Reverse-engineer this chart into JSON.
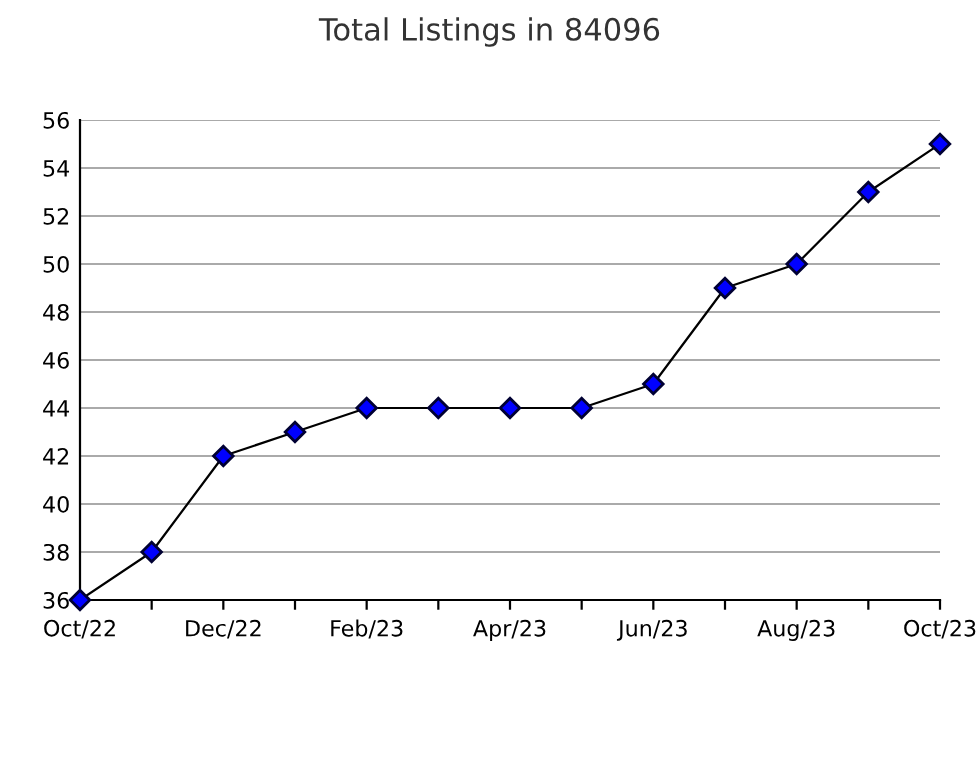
{
  "chart_data": {
    "type": "line",
    "title": "Total Listings in 84096",
    "categories": [
      "Oct/22",
      null,
      "Dec/22",
      null,
      "Feb/23",
      null,
      "Apr/23",
      null,
      "Jun/23",
      null,
      "Aug/23",
      null,
      "Oct/23"
    ],
    "series": [
      {
        "color": "#0000ff",
        "values": [
          36,
          38,
          42,
          43,
          44,
          44,
          44,
          44,
          45,
          49,
          50,
          53,
          55
        ]
      }
    ],
    "ylim": [
      36,
      56
    ],
    "yticks": [
      36,
      38,
      40,
      42,
      44,
      46,
      48,
      50,
      52,
      54,
      56
    ],
    "grid": "y",
    "marker": "diamond",
    "line_style": "solid",
    "legend": false
  }
}
